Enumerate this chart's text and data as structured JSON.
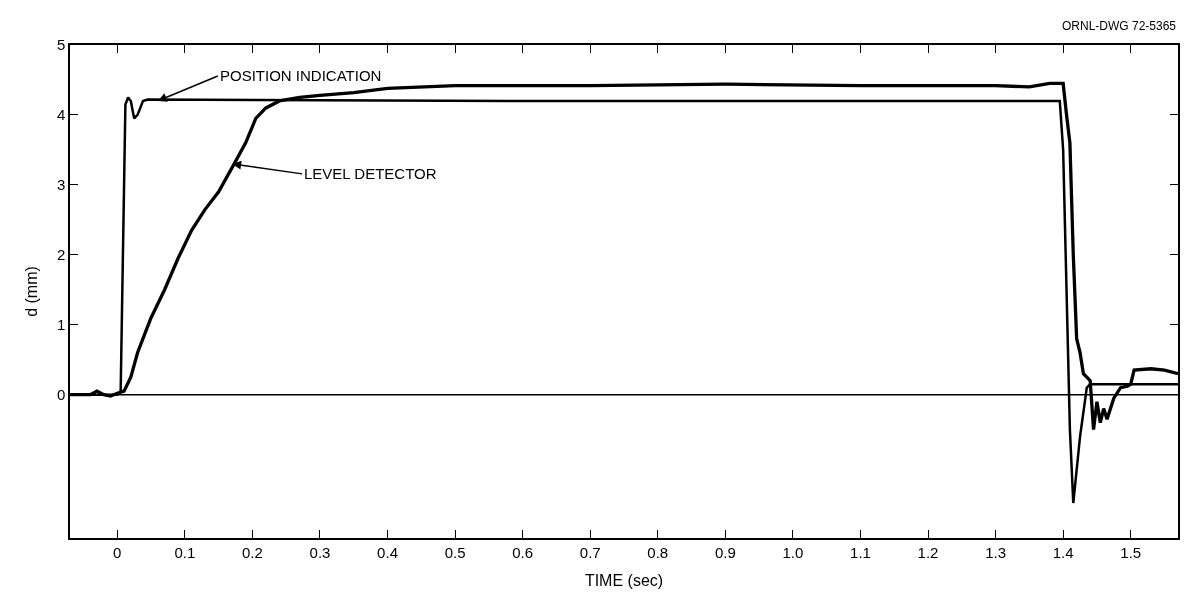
{
  "chart_data": {
    "type": "line",
    "xlabel": "TIME (sec)",
    "ylabel": "d (mm)",
    "xlim": [
      -0.07,
      1.57
    ],
    "ylim": [
      -2.05,
      5
    ],
    "xticks": [
      0,
      0.1,
      0.2,
      0.3,
      0.4,
      0.5,
      0.6,
      0.7,
      0.8,
      0.9,
      {
        "value": 1,
        "label": "1.0"
      },
      1.1,
      1.2,
      1.3,
      1.4,
      1.5
    ],
    "yticks": [
      0,
      1,
      2,
      3,
      4,
      5
    ],
    "marker": "none",
    "line_style": "solid",
    "ref_lines": [
      {
        "axis": "y",
        "value": 0,
        "color": "#000000"
      }
    ],
    "annotations": [
      {
        "text": "POSITION INDICATION",
        "x": 0.06,
        "y": 4.2
      },
      {
        "text": "LEVEL DETECTOR",
        "x": 0.17,
        "y": 3.3
      },
      "ORNL-DWG 72-5365"
    ],
    "series": [
      {
        "color": "#000000",
        "x": [
          -0.07,
          0.0,
          0.005,
          0.012,
          0.016,
          0.02,
          0.025,
          0.03,
          0.038,
          0.045,
          0.6,
          1.0,
          1.39,
          1.395,
          1.4,
          1.405,
          1.41,
          1.415,
          1.425,
          1.435,
          1.44,
          1.5,
          1.57
        ],
        "values": [
          0.0,
          0.0,
          0.05,
          4.15,
          4.25,
          4.2,
          3.95,
          4.0,
          4.2,
          4.22,
          4.2,
          4.2,
          4.2,
          4.2,
          3.5,
          1.5,
          -0.5,
          -1.55,
          -0.6,
          0.1,
          0.15,
          0.15,
          0.15
        ]
      },
      {
        "color": "#000000",
        "x": [
          -0.07,
          -0.04,
          -0.03,
          -0.02,
          -0.01,
          0.0,
          0.01,
          0.02,
          0.03,
          0.04,
          0.05,
          0.07,
          0.09,
          0.11,
          0.13,
          0.15,
          0.173,
          0.19,
          0.205,
          0.22,
          0.24,
          0.27,
          0.3,
          0.35,
          0.4,
          0.5,
          0.7,
          0.9,
          1.1,
          1.3,
          1.35,
          1.38,
          1.4,
          1.405,
          1.41,
          1.415,
          1.42,
          1.425,
          1.43,
          1.44,
          1.445,
          1.45,
          1.455,
          1.46,
          1.465,
          1.475,
          1.485,
          1.495,
          1.5,
          1.505,
          1.53,
          1.55,
          1.57
        ],
        "values": [
          0.0,
          0.0,
          0.05,
          0.0,
          -0.02,
          0.02,
          0.05,
          0.25,
          0.6,
          0.85,
          1.1,
          1.5,
          1.95,
          2.35,
          2.65,
          2.9,
          3.3,
          3.6,
          3.95,
          4.1,
          4.2,
          4.25,
          4.28,
          4.32,
          4.38,
          4.42,
          4.42,
          4.44,
          4.42,
          4.42,
          4.4,
          4.45,
          4.45,
          4.0,
          3.6,
          2.0,
          0.8,
          0.6,
          0.3,
          0.2,
          -0.5,
          -0.1,
          -0.4,
          -0.2,
          -0.35,
          -0.05,
          0.1,
          0.12,
          0.15,
          0.35,
          0.37,
          0.35,
          0.3
        ]
      }
    ]
  }
}
